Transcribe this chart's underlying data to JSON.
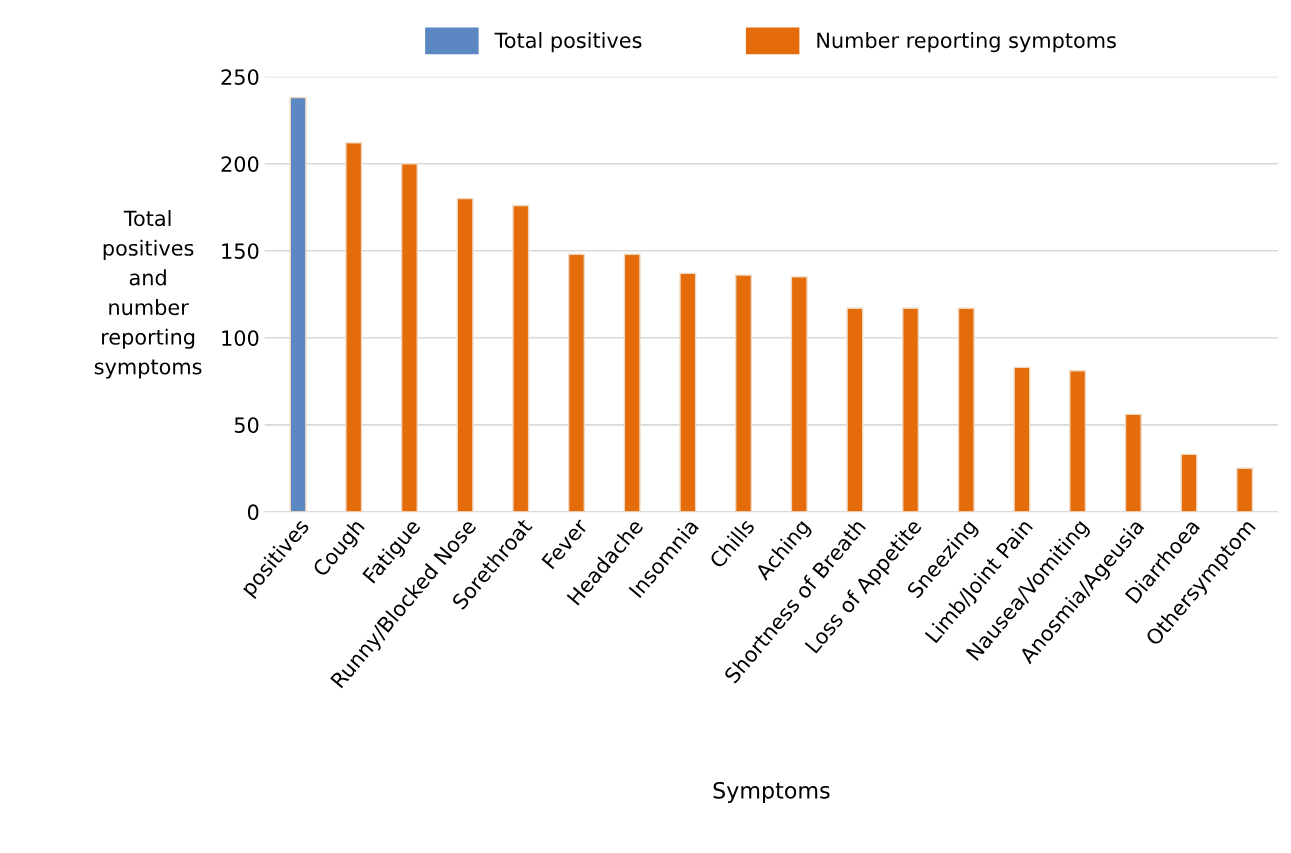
{
  "chart_data": {
    "type": "bar",
    "xlabel": "Symptoms",
    "ylabel": "Total\npositives\nand\nnumber\nreporting\nsymptoms",
    "categories": [
      "positives",
      "Cough",
      "Fatigue",
      "Runny/Blocked Nose",
      "Sorethroat",
      "Fever",
      "Headache",
      "Insomnia",
      "Chills",
      "Aching",
      "Shortness of Breath",
      "Loss of Appetite",
      "Sneezing",
      "Limb/Joint Pain",
      "Nausea/Vomiting",
      "Anosmia/Ageusia",
      "Diarrhoea",
      "Othersymptom"
    ],
    "series": [
      {
        "name": "Total positives",
        "color": "#5b87c2",
        "values": [
          238,
          null,
          null,
          null,
          null,
          null,
          null,
          null,
          null,
          null,
          null,
          null,
          null,
          null,
          null,
          null,
          null,
          null
        ]
      },
      {
        "name": "Number reporting symptoms",
        "color": "#e46c0a",
        "values": [
          null,
          212,
          200,
          180,
          176,
          148,
          148,
          137,
          136,
          135,
          117,
          117,
          117,
          83,
          81,
          56,
          33,
          25
        ]
      }
    ],
    "ylim": [
      0,
      250
    ],
    "yticks": [
      0,
      50,
      100,
      150,
      200,
      250
    ],
    "grid": "y",
    "legend": "top"
  }
}
